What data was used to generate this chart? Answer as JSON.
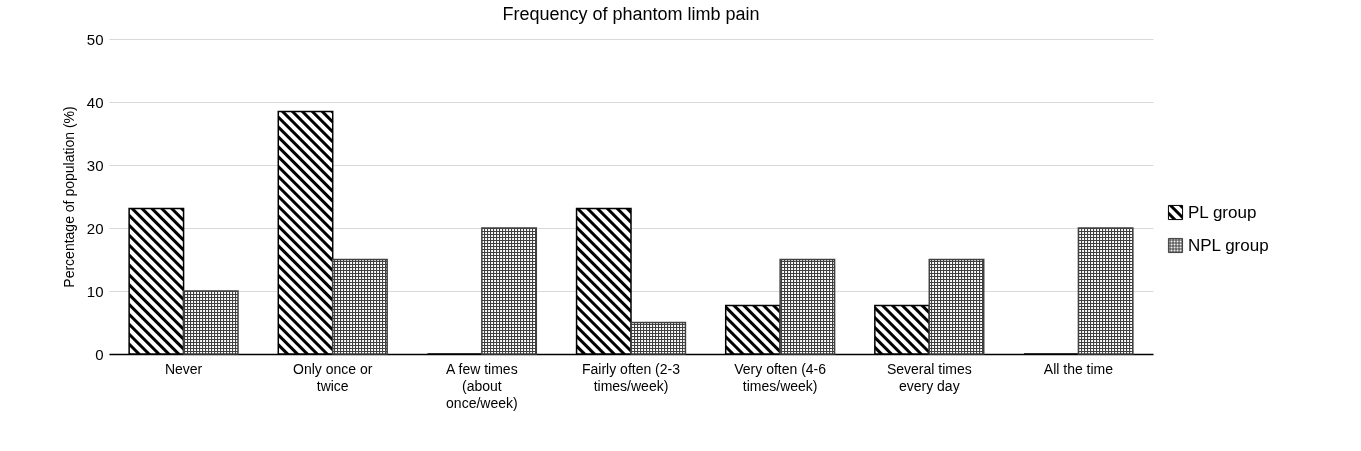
{
  "chart_data": {
    "type": "bar",
    "title": "Frequency of phantom limb pain",
    "ylabel": "Percentage of population (%)",
    "categories": [
      "Never",
      "Only once or twice",
      "A few times (about once/week)",
      "Fairly often (2-3 times/week)",
      "Very often (4-6 times/week)",
      "Several times every day",
      "All the time"
    ],
    "series": [
      {
        "name": "PL group",
        "color": "#000000",
        "values": [
          23.1,
          38.5,
          0,
          23.1,
          7.7,
          7.7,
          0
        ]
      },
      {
        "name": "NPL group",
        "color": "#404040",
        "values": [
          10,
          15,
          20,
          5,
          15,
          15,
          20
        ]
      }
    ],
    "ylim": [
      0,
      50
    ],
    "yticks": [
      0,
      10,
      20,
      30,
      40,
      50
    ],
    "grid": "y",
    "legend": "right"
  }
}
